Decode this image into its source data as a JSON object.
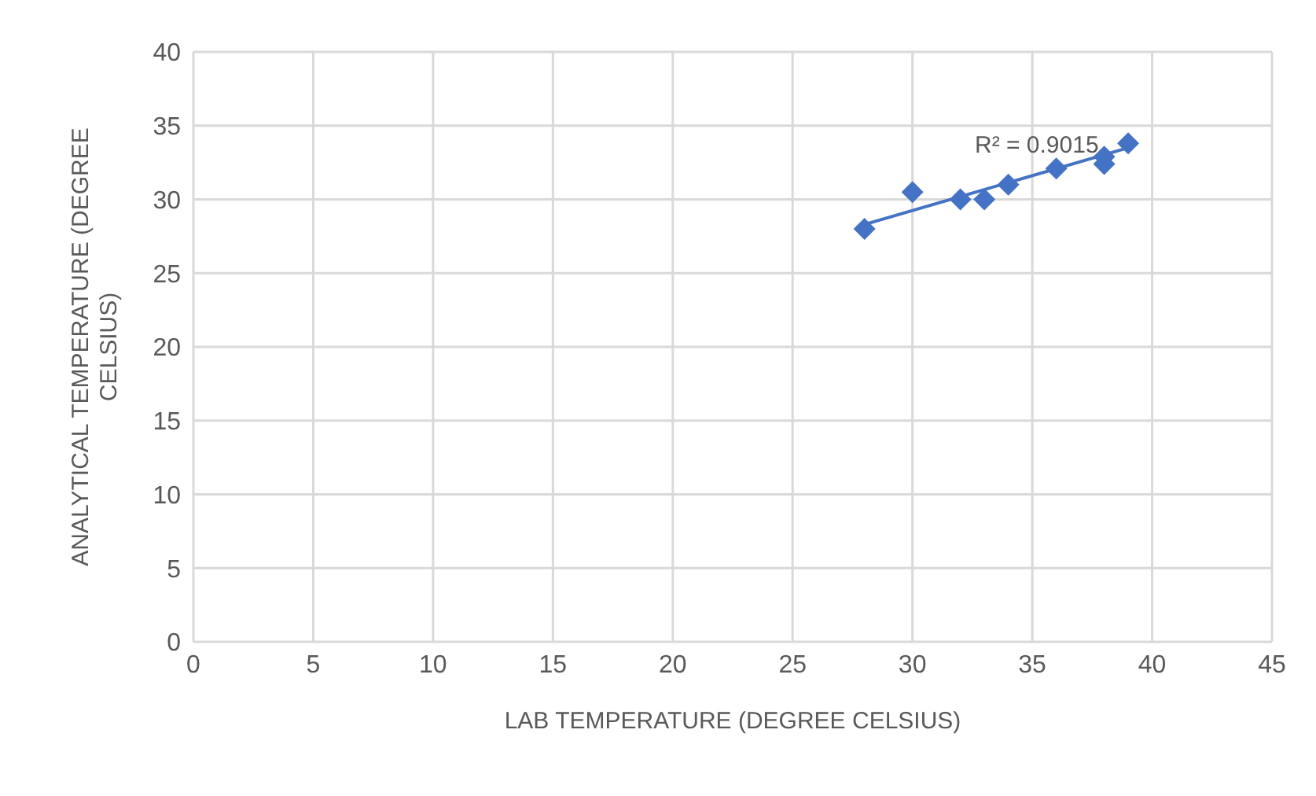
{
  "chart_data": {
    "type": "scatter",
    "xlabel": "LAB TEMPERATURE (DEGREE CELSIUS)",
    "ylabel": "ANALYTICAL TEMPERATURE (DEGREE CELSIUS)",
    "xlim": [
      0,
      45
    ],
    "xticks": [
      0,
      5,
      10,
      15,
      20,
      25,
      30,
      35,
      40,
      45
    ],
    "ylim": [
      0,
      40
    ],
    "yticks": [
      0,
      5,
      10,
      15,
      20,
      25,
      30,
      35,
      40
    ],
    "grid": true,
    "marker": "diamond",
    "series": [
      {
        "color": "#4472c4",
        "x": [
          28,
          30,
          32,
          33,
          34,
          36,
          38,
          38,
          39
        ],
        "values": [
          28,
          30.5,
          30,
          30,
          31,
          32.1,
          32.4,
          32.9,
          33.8
        ]
      },
      {
        "type": "line",
        "color": "#4472c4",
        "marker": "none",
        "x": [
          28,
          39
        ],
        "values": [
          28.3,
          33.5
        ]
      }
    ],
    "annotations": [
      "R² = 0.9015"
    ]
  }
}
